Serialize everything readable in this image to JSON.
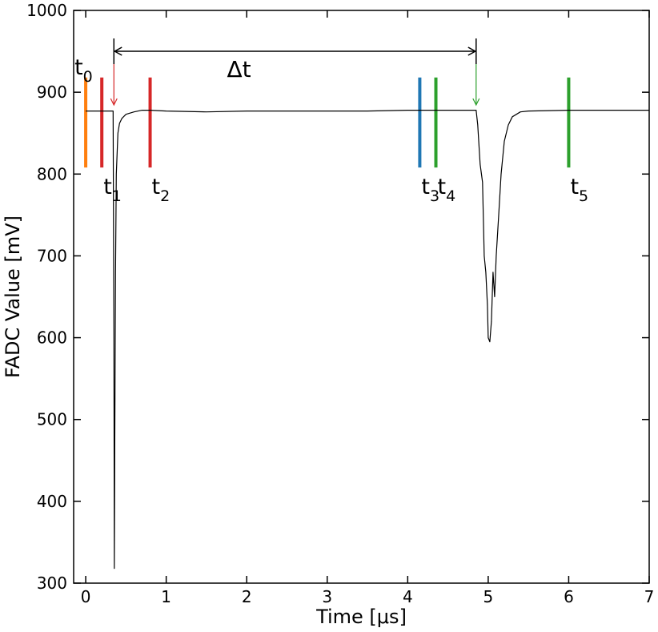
{
  "chart_data": {
    "type": "line",
    "title": "",
    "xlabel": "Time [μs]",
    "ylabel": "FADC Value [mV]",
    "xlim": [
      -0.15,
      7
    ],
    "ylim": [
      300,
      1000
    ],
    "x_ticks": [
      0,
      1,
      2,
      3,
      4,
      5,
      6,
      7
    ],
    "y_ticks": [
      300,
      400,
      500,
      600,
      700,
      800,
      900,
      1000
    ],
    "grid": false,
    "legend": "none",
    "series": [
      {
        "color": "#000000",
        "x": [
          0.0,
          0.1,
          0.2,
          0.3,
          0.34,
          0.35,
          0.355,
          0.36,
          0.37,
          0.38,
          0.4,
          0.42,
          0.45,
          0.5,
          0.6,
          0.7,
          0.8,
          1.0,
          1.5,
          2.0,
          2.5,
          3.0,
          3.5,
          4.0,
          4.5,
          4.85,
          4.87,
          4.9,
          4.93,
          4.95,
          4.97,
          4.99,
          5.0,
          5.02,
          5.04,
          5.06,
          5.08,
          5.1,
          5.13,
          5.16,
          5.2,
          5.25,
          5.3,
          5.4,
          5.5,
          6.0,
          6.5,
          7.0
        ],
        "y": [
          877,
          877,
          877,
          877,
          877,
          600,
          318,
          450,
          680,
          800,
          850,
          862,
          868,
          873,
          876,
          878,
          878,
          877,
          876,
          877,
          877,
          877,
          877,
          878,
          878,
          878,
          860,
          812,
          790,
          700,
          680,
          640,
          600,
          595,
          620,
          680,
          650,
          700,
          750,
          800,
          840,
          860,
          870,
          876,
          877,
          878,
          878,
          878
        ]
      }
    ],
    "markers": [
      {
        "label": "t",
        "sub": "0",
        "x": 0.0,
        "color": "#ff7f0e"
      },
      {
        "label": "t",
        "sub": "1",
        "x": 0.2,
        "color": "#d62728"
      },
      {
        "label": "t",
        "sub": "2",
        "x": 0.8,
        "color": "#d62728"
      },
      {
        "label": "t",
        "sub": "3",
        "x": 4.15,
        "color": "#1f77b4"
      },
      {
        "label": "t",
        "sub": "4",
        "x": 4.35,
        "color": "#2ca02c"
      },
      {
        "label": "t",
        "sub": "5",
        "x": 6.0,
        "color": "#2ca02c"
      }
    ],
    "annotations": {
      "delta_t": {
        "label": "Δt",
        "x_start": 0.35,
        "x_end": 4.85
      },
      "arrows": [
        {
          "x": 0.35,
          "color": "#d62728"
        },
        {
          "x": 4.85,
          "color": "#2ca02c"
        }
      ]
    }
  }
}
